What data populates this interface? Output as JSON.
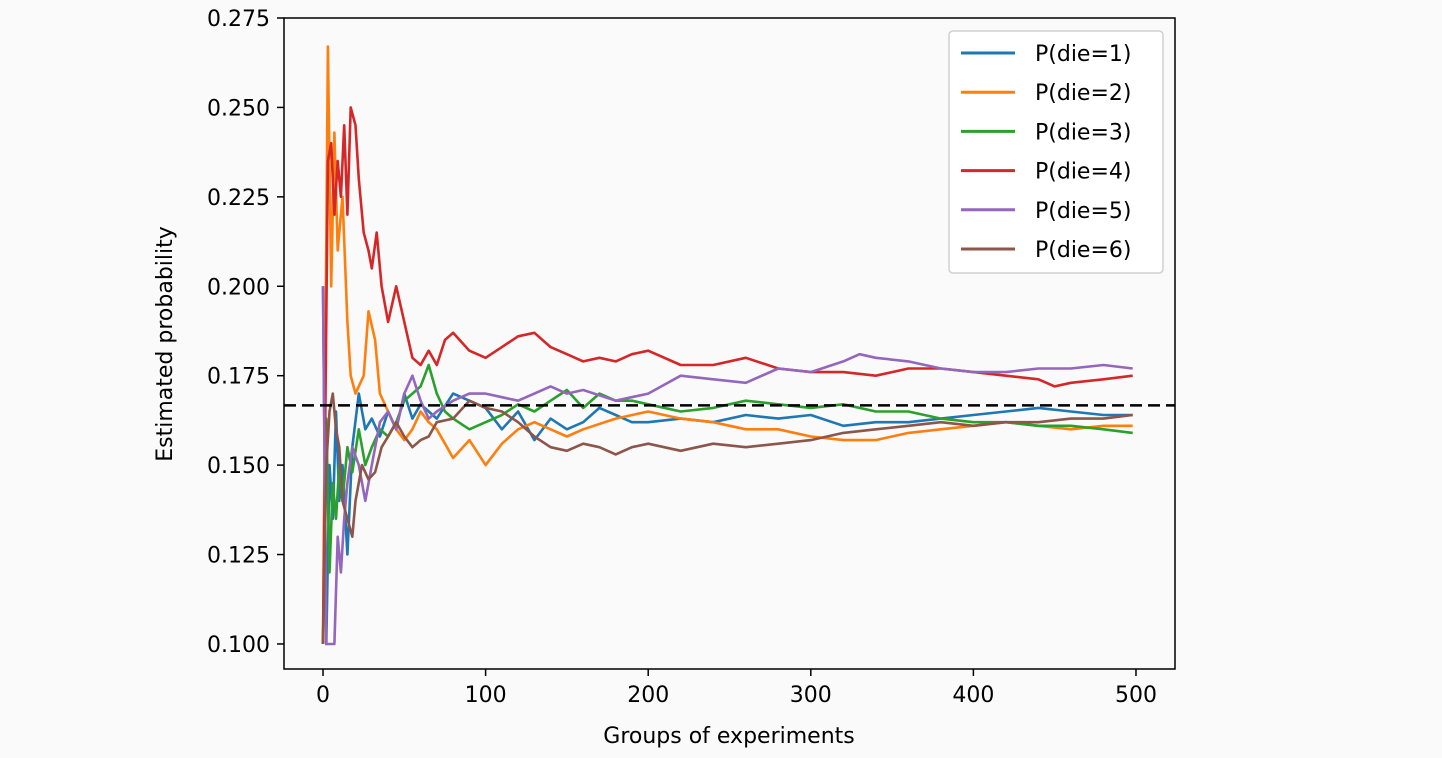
{
  "chart_data": {
    "type": "line",
    "title": "",
    "xlabel": "Groups of experiments",
    "ylabel": "Estimated probability",
    "xlim": [
      -24,
      524
    ],
    "ylim": [
      0.093,
      0.275
    ],
    "x_ticks": [
      0,
      100,
      200,
      300,
      400,
      500
    ],
    "y_ticks": [
      0.1,
      0.125,
      0.15,
      0.175,
      0.2,
      0.225,
      0.25,
      0.275
    ],
    "x_tick_labels": [
      "0",
      "100",
      "200",
      "300",
      "400",
      "500"
    ],
    "y_tick_labels": [
      "0.100",
      "0.125",
      "0.150",
      "0.175",
      "0.200",
      "0.225",
      "0.250",
      "0.275"
    ],
    "grid": false,
    "legend_position": "top-right",
    "reference_line": {
      "y": 0.1667,
      "style": "dashed",
      "color": "#000000"
    },
    "series": [
      {
        "name": "P(die=1)",
        "color": "#1f77b4",
        "points": [
          [
            0,
            0.2
          ],
          [
            2,
            0.1
          ],
          [
            4,
            0.15
          ],
          [
            6,
            0.135
          ],
          [
            8,
            0.165
          ],
          [
            10,
            0.14
          ],
          [
            12,
            0.15
          ],
          [
            15,
            0.125
          ],
          [
            18,
            0.155
          ],
          [
            22,
            0.17
          ],
          [
            26,
            0.16
          ],
          [
            30,
            0.163
          ],
          [
            35,
            0.158
          ],
          [
            40,
            0.165
          ],
          [
            45,
            0.16
          ],
          [
            50,
            0.17
          ],
          [
            55,
            0.163
          ],
          [
            60,
            0.167
          ],
          [
            70,
            0.163
          ],
          [
            80,
            0.17
          ],
          [
            90,
            0.168
          ],
          [
            100,
            0.166
          ],
          [
            110,
            0.16
          ],
          [
            120,
            0.165
          ],
          [
            130,
            0.157
          ],
          [
            140,
            0.163
          ],
          [
            150,
            0.16
          ],
          [
            160,
            0.162
          ],
          [
            170,
            0.166
          ],
          [
            180,
            0.164
          ],
          [
            190,
            0.162
          ],
          [
            200,
            0.162
          ],
          [
            220,
            0.163
          ],
          [
            240,
            0.162
          ],
          [
            260,
            0.164
          ],
          [
            280,
            0.163
          ],
          [
            300,
            0.164
          ],
          [
            320,
            0.161
          ],
          [
            340,
            0.162
          ],
          [
            360,
            0.162
          ],
          [
            380,
            0.163
          ],
          [
            400,
            0.164
          ],
          [
            420,
            0.165
          ],
          [
            440,
            0.166
          ],
          [
            460,
            0.165
          ],
          [
            480,
            0.164
          ],
          [
            498,
            0.164
          ]
        ]
      },
      {
        "name": "P(die=2)",
        "color": "#ff7f0e",
        "points": [
          [
            0,
            0.1
          ],
          [
            3,
            0.267
          ],
          [
            5,
            0.2
          ],
          [
            7,
            0.243
          ],
          [
            9,
            0.21
          ],
          [
            12,
            0.225
          ],
          [
            15,
            0.19
          ],
          [
            17,
            0.175
          ],
          [
            20,
            0.17
          ],
          [
            25,
            0.175
          ],
          [
            28,
            0.193
          ],
          [
            32,
            0.185
          ],
          [
            35,
            0.17
          ],
          [
            40,
            0.165
          ],
          [
            45,
            0.16
          ],
          [
            50,
            0.157
          ],
          [
            55,
            0.16
          ],
          [
            60,
            0.165
          ],
          [
            65,
            0.162
          ],
          [
            70,
            0.16
          ],
          [
            75,
            0.156
          ],
          [
            80,
            0.152
          ],
          [
            90,
            0.157
          ],
          [
            100,
            0.15
          ],
          [
            110,
            0.156
          ],
          [
            120,
            0.16
          ],
          [
            130,
            0.162
          ],
          [
            140,
            0.16
          ],
          [
            150,
            0.158
          ],
          [
            160,
            0.16
          ],
          [
            180,
            0.163
          ],
          [
            200,
            0.165
          ],
          [
            220,
            0.163
          ],
          [
            240,
            0.162
          ],
          [
            260,
            0.16
          ],
          [
            280,
            0.16
          ],
          [
            300,
            0.158
          ],
          [
            320,
            0.157
          ],
          [
            340,
            0.157
          ],
          [
            360,
            0.159
          ],
          [
            380,
            0.16
          ],
          [
            400,
            0.161
          ],
          [
            420,
            0.162
          ],
          [
            440,
            0.161
          ],
          [
            460,
            0.16
          ],
          [
            480,
            0.161
          ],
          [
            498,
            0.161
          ]
        ]
      },
      {
        "name": "P(die=3)",
        "color": "#2ca02c",
        "points": [
          [
            0,
            0.1
          ],
          [
            2,
            0.163
          ],
          [
            4,
            0.12
          ],
          [
            6,
            0.145
          ],
          [
            8,
            0.135
          ],
          [
            10,
            0.15
          ],
          [
            12,
            0.14
          ],
          [
            15,
            0.155
          ],
          [
            18,
            0.148
          ],
          [
            22,
            0.16
          ],
          [
            26,
            0.15
          ],
          [
            30,
            0.155
          ],
          [
            35,
            0.16
          ],
          [
            40,
            0.158
          ],
          [
            45,
            0.162
          ],
          [
            50,
            0.168
          ],
          [
            55,
            0.17
          ],
          [
            60,
            0.172
          ],
          [
            65,
            0.178
          ],
          [
            70,
            0.17
          ],
          [
            75,
            0.165
          ],
          [
            80,
            0.163
          ],
          [
            90,
            0.16
          ],
          [
            100,
            0.162
          ],
          [
            110,
            0.164
          ],
          [
            120,
            0.167
          ],
          [
            130,
            0.165
          ],
          [
            140,
            0.168
          ],
          [
            150,
            0.171
          ],
          [
            160,
            0.166
          ],
          [
            170,
            0.17
          ],
          [
            180,
            0.168
          ],
          [
            190,
            0.168
          ],
          [
            200,
            0.167
          ],
          [
            220,
            0.165
          ],
          [
            240,
            0.166
          ],
          [
            260,
            0.168
          ],
          [
            280,
            0.167
          ],
          [
            300,
            0.166
          ],
          [
            320,
            0.167
          ],
          [
            340,
            0.165
          ],
          [
            360,
            0.165
          ],
          [
            380,
            0.163
          ],
          [
            400,
            0.162
          ],
          [
            420,
            0.162
          ],
          [
            440,
            0.161
          ],
          [
            460,
            0.161
          ],
          [
            480,
            0.16
          ],
          [
            498,
            0.159
          ]
        ]
      },
      {
        "name": "P(die=4)",
        "color": "#d62728",
        "points": [
          [
            0,
            0.1
          ],
          [
            3,
            0.235
          ],
          [
            5,
            0.24
          ],
          [
            7,
            0.22
          ],
          [
            9,
            0.235
          ],
          [
            11,
            0.225
          ],
          [
            13,
            0.245
          ],
          [
            15,
            0.22
          ],
          [
            17,
            0.25
          ],
          [
            20,
            0.245
          ],
          [
            22,
            0.23
          ],
          [
            25,
            0.215
          ],
          [
            28,
            0.21
          ],
          [
            30,
            0.205
          ],
          [
            33,
            0.215
          ],
          [
            36,
            0.2
          ],
          [
            40,
            0.19
          ],
          [
            45,
            0.2
          ],
          [
            50,
            0.19
          ],
          [
            55,
            0.18
          ],
          [
            60,
            0.178
          ],
          [
            65,
            0.182
          ],
          [
            70,
            0.178
          ],
          [
            75,
            0.185
          ],
          [
            80,
            0.187
          ],
          [
            90,
            0.182
          ],
          [
            100,
            0.18
          ],
          [
            110,
            0.183
          ],
          [
            120,
            0.186
          ],
          [
            130,
            0.187
          ],
          [
            140,
            0.183
          ],
          [
            150,
            0.181
          ],
          [
            160,
            0.179
          ],
          [
            170,
            0.18
          ],
          [
            180,
            0.179
          ],
          [
            190,
            0.181
          ],
          [
            200,
            0.182
          ],
          [
            220,
            0.178
          ],
          [
            240,
            0.178
          ],
          [
            260,
            0.18
          ],
          [
            280,
            0.177
          ],
          [
            300,
            0.176
          ],
          [
            320,
            0.176
          ],
          [
            340,
            0.175
          ],
          [
            360,
            0.177
          ],
          [
            380,
            0.177
          ],
          [
            400,
            0.176
          ],
          [
            420,
            0.175
          ],
          [
            440,
            0.174
          ],
          [
            450,
            0.172
          ],
          [
            460,
            0.173
          ],
          [
            480,
            0.174
          ],
          [
            498,
            0.175
          ]
        ]
      },
      {
        "name": "P(die=5)",
        "color": "#9467bd",
        "points": [
          [
            0,
            0.2
          ],
          [
            2,
            0.1
          ],
          [
            5,
            0.1
          ],
          [
            7,
            0.1
          ],
          [
            9,
            0.13
          ],
          [
            11,
            0.12
          ],
          [
            13,
            0.135
          ],
          [
            15,
            0.145
          ],
          [
            18,
            0.155
          ],
          [
            22,
            0.15
          ],
          [
            26,
            0.14
          ],
          [
            30,
            0.15
          ],
          [
            35,
            0.162
          ],
          [
            40,
            0.165
          ],
          [
            45,
            0.16
          ],
          [
            50,
            0.17
          ],
          [
            55,
            0.175
          ],
          [
            60,
            0.168
          ],
          [
            65,
            0.163
          ],
          [
            70,
            0.165
          ],
          [
            80,
            0.168
          ],
          [
            90,
            0.17
          ],
          [
            100,
            0.17
          ],
          [
            110,
            0.169
          ],
          [
            120,
            0.168
          ],
          [
            130,
            0.17
          ],
          [
            140,
            0.172
          ],
          [
            150,
            0.17
          ],
          [
            160,
            0.171
          ],
          [
            180,
            0.168
          ],
          [
            200,
            0.17
          ],
          [
            220,
            0.175
          ],
          [
            240,
            0.174
          ],
          [
            260,
            0.173
          ],
          [
            280,
            0.177
          ],
          [
            300,
            0.176
          ],
          [
            320,
            0.179
          ],
          [
            330,
            0.181
          ],
          [
            340,
            0.18
          ],
          [
            360,
            0.179
          ],
          [
            380,
            0.177
          ],
          [
            400,
            0.176
          ],
          [
            420,
            0.176
          ],
          [
            440,
            0.177
          ],
          [
            460,
            0.177
          ],
          [
            480,
            0.178
          ],
          [
            498,
            0.177
          ]
        ]
      },
      {
        "name": "P(die=6)",
        "color": "#8c564b",
        "points": [
          [
            0,
            0.1
          ],
          [
            2,
            0.15
          ],
          [
            4,
            0.165
          ],
          [
            6,
            0.17
          ],
          [
            8,
            0.16
          ],
          [
            10,
            0.155
          ],
          [
            12,
            0.14
          ],
          [
            15,
            0.135
          ],
          [
            18,
            0.13
          ],
          [
            20,
            0.14
          ],
          [
            24,
            0.15
          ],
          [
            28,
            0.146
          ],
          [
            32,
            0.148
          ],
          [
            36,
            0.155
          ],
          [
            40,
            0.158
          ],
          [
            45,
            0.162
          ],
          [
            50,
            0.158
          ],
          [
            55,
            0.155
          ],
          [
            60,
            0.157
          ],
          [
            65,
            0.158
          ],
          [
            70,
            0.162
          ],
          [
            80,
            0.163
          ],
          [
            90,
            0.168
          ],
          [
            100,
            0.166
          ],
          [
            110,
            0.165
          ],
          [
            120,
            0.162
          ],
          [
            130,
            0.158
          ],
          [
            140,
            0.155
          ],
          [
            150,
            0.154
          ],
          [
            160,
            0.156
          ],
          [
            170,
            0.155
          ],
          [
            180,
            0.153
          ],
          [
            190,
            0.155
          ],
          [
            200,
            0.156
          ],
          [
            220,
            0.154
          ],
          [
            240,
            0.156
          ],
          [
            260,
            0.155
          ],
          [
            280,
            0.156
          ],
          [
            300,
            0.157
          ],
          [
            320,
            0.159
          ],
          [
            340,
            0.16
          ],
          [
            360,
            0.161
          ],
          [
            380,
            0.162
          ],
          [
            400,
            0.161
          ],
          [
            420,
            0.162
          ],
          [
            440,
            0.162
          ],
          [
            460,
            0.163
          ],
          [
            480,
            0.163
          ],
          [
            498,
            0.164
          ]
        ]
      }
    ]
  }
}
